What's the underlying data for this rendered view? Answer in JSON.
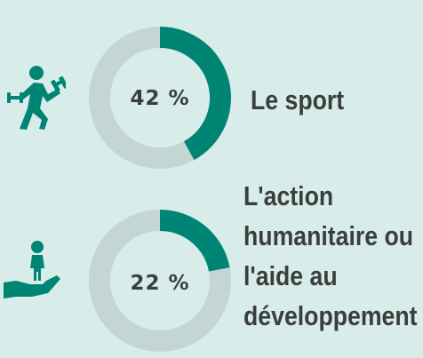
{
  "colors": {
    "accent": "#008575",
    "track": "#c3d6d3",
    "background": "#d8ecea",
    "text": "#3a3f3d"
  },
  "chart_data": [
    {
      "type": "pie",
      "icon": "runner-with-weights-icon",
      "categories": [
        "Le sport"
      ],
      "values": [
        42
      ],
      "value_label": "42 %",
      "label_lines": [
        "Le sport"
      ]
    },
    {
      "type": "pie",
      "icon": "hand-holding-child-icon",
      "categories": [
        "L'action humanitaire ou l'aide au développement"
      ],
      "values": [
        22
      ],
      "value_label": "22 %",
      "label_lines": [
        "L'action",
        "humanitaire ou",
        "l'aide au",
        "développement"
      ]
    }
  ]
}
